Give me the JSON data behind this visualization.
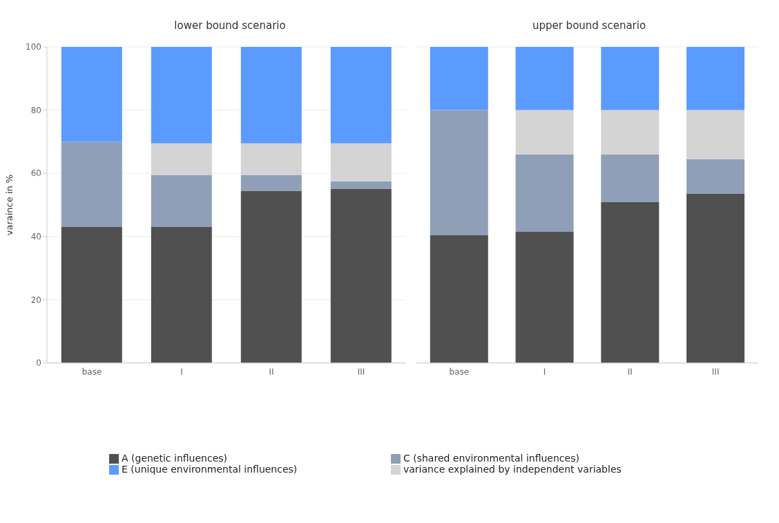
{
  "chart_data": [
    {
      "type": "bar",
      "title": "lower bound scenario",
      "ylabel": "varaince in %",
      "stacked": true,
      "categories": [
        "base",
        "I",
        "II",
        "III"
      ],
      "ylim": [
        0,
        100
      ],
      "yticks": [
        0,
        20,
        40,
        60,
        80,
        100
      ],
      "grid": "y",
      "legend": "bottom",
      "series": [
        {
          "name": "A (genetic influences)",
          "color": "#505050",
          "values": [
            43,
            43,
            54.5,
            55
          ]
        },
        {
          "name": "C (shared environmental influences)",
          "color": "#8f9fb8",
          "values": [
            27,
            16.5,
            5,
            2.5
          ]
        },
        {
          "name": "variance explained by independent variables",
          "color": "#d4d4d4",
          "values": [
            null,
            10,
            10,
            12
          ]
        },
        {
          "name": "E (unique environmental influences)",
          "color": "#5b9bff",
          "values": [
            30,
            30.5,
            30.5,
            30.5
          ]
        }
      ]
    },
    {
      "type": "bar",
      "title": "upper bound scenario",
      "stacked": true,
      "categories": [
        "base",
        "I",
        "II",
        "III"
      ],
      "ylim": [
        0,
        100
      ],
      "yticks": [
        0,
        20,
        40,
        60,
        80,
        100
      ],
      "grid": "y",
      "tick_labels": "x",
      "series": [
        {
          "color": "#505050",
          "values": [
            40.5,
            41.5,
            51,
            53.5
          ]
        },
        {
          "color": "#8f9fb8",
          "values": [
            39.5,
            24.5,
            15,
            11
          ]
        },
        {
          "color": "#d4d4d4",
          "values": [
            null,
            14,
            14,
            15.5
          ]
        },
        {
          "color": "#5b9bff",
          "values": [
            20,
            20,
            20,
            20
          ]
        }
      ]
    }
  ]
}
